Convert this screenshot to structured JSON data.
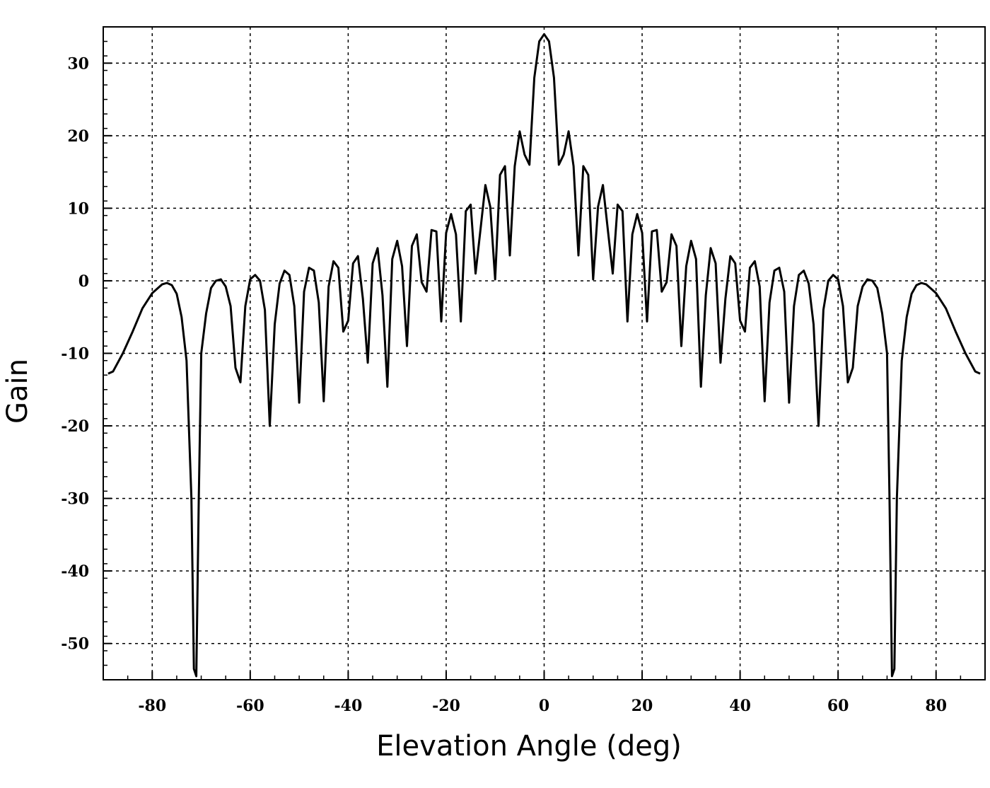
{
  "chart_data": {
    "type": "line",
    "title": "",
    "xlabel": "Elevation Angle (deg)",
    "ylabel": "Gain",
    "xlim": [
      -90,
      90
    ],
    "ylim": [
      -55,
      35
    ],
    "xticks": [
      -80,
      -60,
      -40,
      -20,
      0,
      20,
      40,
      60,
      80
    ],
    "yticks": [
      30,
      20,
      10,
      0,
      -10,
      -20,
      -30,
      -40,
      -50
    ],
    "grid": true,
    "legend": "none",
    "series": [
      {
        "color": "#000000",
        "x": [
          -89,
          -88,
          -86,
          -84,
          -82,
          -80,
          -78,
          -77,
          -76,
          -75,
          -74,
          -73,
          -72,
          -71.5,
          -71,
          -70.5,
          -70,
          -69,
          -68,
          -67,
          -66,
          -65,
          -64,
          -63,
          -62,
          -61,
          -60,
          -59,
          -58,
          -57,
          -56,
          -55,
          -54,
          -53,
          -52,
          -51,
          -50,
          -49,
          -48,
          -47,
          -46,
          -45,
          -44,
          -43,
          -42,
          -41,
          -40,
          -39,
          -38,
          -37,
          -36,
          -35,
          -34,
          -33,
          -32,
          -31,
          -30,
          -29,
          -28,
          -27,
          -26,
          -25,
          -24,
          -23,
          -22,
          -21,
          -20,
          -19,
          -18,
          -17,
          -16,
          -15,
          -14,
          -13,
          -12,
          -11,
          -10,
          -9,
          -8,
          -7,
          -6,
          -5,
          -4,
          -3,
          -2,
          -1,
          0,
          1,
          2,
          3,
          4,
          5,
          6,
          7,
          8,
          9,
          10,
          11,
          12,
          13,
          14,
          15,
          16,
          17,
          18,
          19,
          20,
          21,
          22,
          23,
          24,
          25,
          26,
          27,
          28,
          29,
          30,
          31,
          32,
          33,
          34,
          35,
          36,
          37,
          38,
          39,
          40,
          41,
          42,
          43,
          44,
          45,
          46,
          47,
          48,
          49,
          50,
          51,
          52,
          53,
          54,
          55,
          56,
          57,
          58,
          59,
          60,
          61,
          62,
          63,
          64,
          65,
          66,
          67,
          68,
          69,
          70,
          70.5,
          71,
          71.5,
          72,
          73,
          74,
          75,
          76,
          77,
          78,
          80,
          82,
          84,
          86,
          88,
          89
        ],
        "y": [
          -12.8,
          -12.5,
          -10,
          -7,
          -3.8,
          -1.7,
          -0.5,
          -0.3,
          -0.6,
          -1.8,
          -5,
          -11,
          -30,
          -53.5,
          -54.5,
          -30,
          -10,
          -4.5,
          -1,
          0,
          0.2,
          -0.8,
          -3.5,
          -12,
          -14,
          -3.5,
          0.2,
          0.8,
          0,
          -4,
          -20,
          -6,
          -0.4,
          1.4,
          0.8,
          -3.5,
          -16.8,
          -1.5,
          1.8,
          1.4,
          -3,
          -16.6,
          -0.8,
          2.7,
          1.8,
          -7,
          -5.5,
          2.4,
          3.4,
          -2.5,
          -11.3,
          2.4,
          4.5,
          -2,
          -14.6,
          3,
          5.5,
          2,
          -9,
          4.8,
          6.4,
          -0.2,
          -1.5,
          7,
          6.8,
          -5.6,
          6.6,
          9.2,
          6.4,
          -5.6,
          9.6,
          10.5,
          1,
          7,
          13.2,
          10.2,
          0.2,
          14.6,
          15.8,
          3.5,
          15.8,
          20.6,
          17.4,
          16,
          28,
          33,
          34,
          33,
          28,
          16,
          17.4,
          20.6,
          15.8,
          3.5,
          15.8,
          14.6,
          0.2,
          10.2,
          13.2,
          7,
          1,
          10.5,
          9.6,
          -5.6,
          6.4,
          9.2,
          6.6,
          -5.6,
          6.8,
          7,
          -1.5,
          -0.2,
          6.4,
          4.8,
          -9,
          2,
          5.5,
          3,
          -14.6,
          -2,
          4.5,
          2.4,
          -11.3,
          -2.5,
          3.4,
          2.4,
          -5.5,
          -7,
          1.8,
          2.7,
          -0.8,
          -16.6,
          -3,
          1.4,
          1.8,
          -1.5,
          -16.8,
          -3.5,
          0.8,
          1.4,
          -0.4,
          -6,
          -20,
          -4,
          0,
          0.8,
          0.2,
          -3.5,
          -14,
          -12,
          -3.5,
          -0.8,
          0.2,
          0,
          -1,
          -4.5,
          -10,
          -30,
          -54.5,
          -53.5,
          -30,
          -11,
          -5,
          -1.8,
          -0.6,
          -0.3,
          -0.5,
          -1.7,
          -3.8,
          -7,
          -10,
          -12.5,
          -12.8
        ]
      }
    ]
  }
}
